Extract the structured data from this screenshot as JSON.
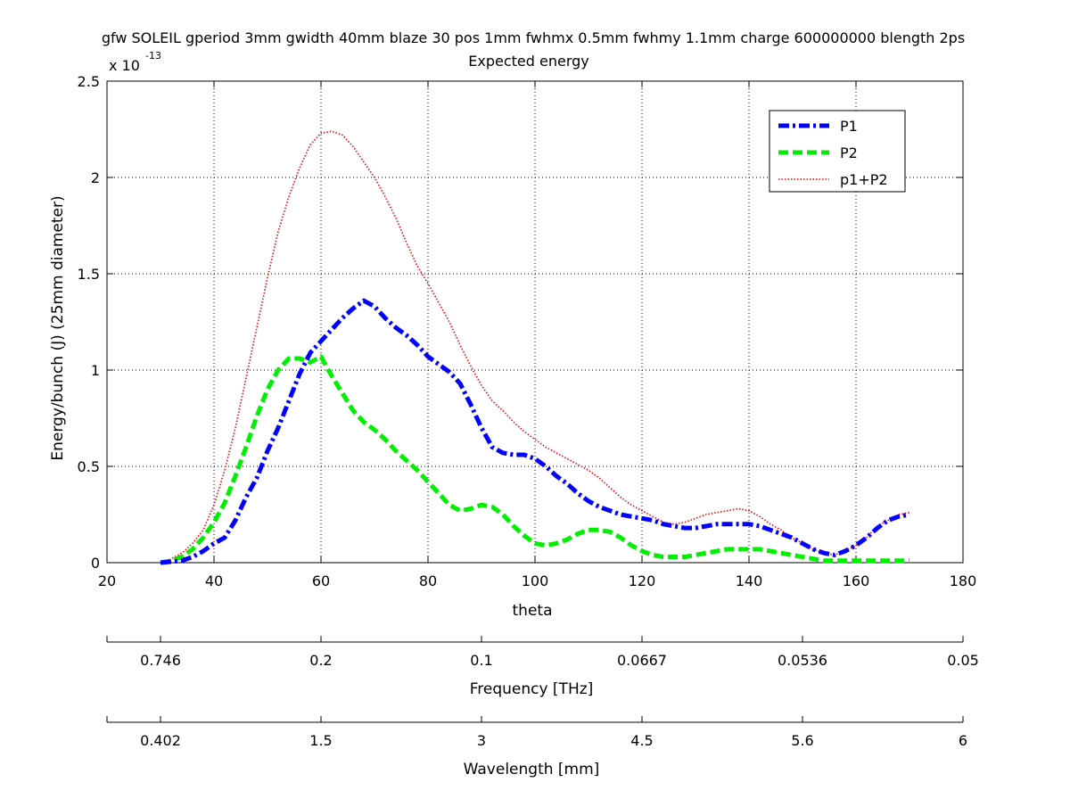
{
  "chart_data": {
    "type": "line",
    "title": "gfw SOLEIL gperiod 3mm gwidth 40mm blaze 30 pos 1mm fwhmx 0.5mm fwhmy 1.1mm charge 600000000 blength 2ps",
    "subtitle": "Expected energy",
    "xlabel": "theta",
    "ylabel": "Energy/bunch (J) (25mm diameter)",
    "y_exponent_label": "x 10",
    "y_exponent_power": "-13",
    "xlim": [
      20,
      180
    ],
    "ylim": [
      0,
      2.5
    ],
    "grid": true,
    "legend_position": "top-right",
    "x_ticks": [
      "20",
      "40",
      "60",
      "80",
      "100",
      "120",
      "140",
      "160",
      "180"
    ],
    "y_ticks": [
      "0",
      "0.5",
      "1",
      "1.5",
      "2",
      "2.5"
    ],
    "series": [
      {
        "name": "P1",
        "color": "#0000ff",
        "style": "dashdot",
        "x": [
          30,
          34,
          36,
          38,
          40,
          42,
          44,
          46,
          48,
          50,
          52,
          54,
          56,
          58,
          60,
          62,
          64,
          66,
          68,
          70,
          72,
          74,
          76,
          78,
          80,
          82,
          84,
          86,
          88,
          90,
          92,
          94,
          96,
          98,
          100,
          102,
          104,
          106,
          108,
          110,
          112,
          114,
          116,
          118,
          120,
          122,
          124,
          126,
          128,
          130,
          132,
          134,
          136,
          138,
          140,
          142,
          144,
          146,
          148,
          150,
          152,
          154,
          156,
          158,
          160,
          162,
          164,
          166,
          168,
          170
        ],
        "values": [
          0,
          0.01,
          0.03,
          0.06,
          0.1,
          0.13,
          0.22,
          0.34,
          0.44,
          0.58,
          0.7,
          0.84,
          0.98,
          1.09,
          1.15,
          1.21,
          1.27,
          1.32,
          1.36,
          1.33,
          1.27,
          1.22,
          1.18,
          1.13,
          1.07,
          1.03,
          0.99,
          0.93,
          0.82,
          0.7,
          0.6,
          0.57,
          0.56,
          0.56,
          0.54,
          0.5,
          0.45,
          0.41,
          0.36,
          0.32,
          0.29,
          0.27,
          0.25,
          0.24,
          0.23,
          0.22,
          0.2,
          0.19,
          0.18,
          0.18,
          0.19,
          0.2,
          0.2,
          0.2,
          0.2,
          0.19,
          0.17,
          0.15,
          0.13,
          0.1,
          0.07,
          0.05,
          0.04,
          0.06,
          0.09,
          0.13,
          0.18,
          0.22,
          0.24,
          0.25
        ]
      },
      {
        "name": "P2",
        "color": "#00ee00",
        "style": "dashed",
        "x": [
          30,
          32,
          34,
          36,
          38,
          40,
          42,
          44,
          46,
          48,
          50,
          52,
          54,
          56,
          58,
          60,
          62,
          64,
          66,
          68,
          70,
          72,
          74,
          76,
          78,
          80,
          82,
          84,
          86,
          88,
          90,
          92,
          94,
          96,
          98,
          100,
          102,
          104,
          106,
          108,
          110,
          112,
          114,
          116,
          118,
          120,
          122,
          124,
          126,
          128,
          130,
          132,
          134,
          136,
          138,
          140,
          142,
          144,
          146,
          148,
          150,
          152,
          154,
          156,
          158,
          160,
          162,
          164,
          166,
          168,
          170
        ],
        "values": [
          0,
          0.01,
          0.03,
          0.07,
          0.13,
          0.21,
          0.31,
          0.45,
          0.6,
          0.76,
          0.9,
          1.0,
          1.06,
          1.06,
          1.04,
          1.07,
          0.97,
          0.88,
          0.79,
          0.73,
          0.69,
          0.64,
          0.58,
          0.53,
          0.48,
          0.42,
          0.36,
          0.3,
          0.27,
          0.28,
          0.3,
          0.29,
          0.25,
          0.19,
          0.14,
          0.1,
          0.09,
          0.1,
          0.12,
          0.15,
          0.17,
          0.17,
          0.16,
          0.13,
          0.09,
          0.06,
          0.04,
          0.03,
          0.03,
          0.03,
          0.04,
          0.05,
          0.06,
          0.07,
          0.07,
          0.07,
          0.07,
          0.06,
          0.05,
          0.04,
          0.03,
          0.02,
          0.01,
          0.01,
          0.01,
          0.01,
          0.01,
          0.01,
          0.01,
          0.01,
          0.01
        ]
      },
      {
        "name": "p1+P2",
        "color": "#ff0000",
        "style": "dotted",
        "x": [
          30,
          32,
          34,
          36,
          38,
          40,
          42,
          44,
          46,
          48,
          50,
          52,
          54,
          56,
          58,
          60,
          62,
          64,
          66,
          68,
          70,
          72,
          74,
          76,
          78,
          80,
          82,
          84,
          86,
          88,
          90,
          92,
          94,
          96,
          98,
          100,
          102,
          104,
          106,
          108,
          110,
          112,
          114,
          116,
          118,
          120,
          122,
          124,
          126,
          128,
          130,
          132,
          134,
          136,
          138,
          140,
          142,
          144,
          146,
          148,
          150,
          152,
          154,
          156,
          158,
          160,
          162,
          164,
          166,
          168,
          170
        ],
        "values": [
          0,
          0.02,
          0.05,
          0.1,
          0.17,
          0.3,
          0.48,
          0.7,
          0.96,
          1.22,
          1.48,
          1.72,
          1.9,
          2.05,
          2.17,
          2.23,
          2.24,
          2.22,
          2.16,
          2.08,
          2.0,
          1.9,
          1.79,
          1.66,
          1.54,
          1.45,
          1.35,
          1.25,
          1.13,
          1.02,
          0.92,
          0.84,
          0.79,
          0.73,
          0.68,
          0.64,
          0.6,
          0.57,
          0.54,
          0.51,
          0.48,
          0.44,
          0.39,
          0.34,
          0.3,
          0.27,
          0.24,
          0.21,
          0.2,
          0.21,
          0.23,
          0.25,
          0.26,
          0.27,
          0.28,
          0.27,
          0.24,
          0.2,
          0.17,
          0.13,
          0.1,
          0.07,
          0.05,
          0.04,
          0.06,
          0.09,
          0.13,
          0.19,
          0.22,
          0.25,
          0.26
        ]
      }
    ],
    "frequency_axis": {
      "label": "Frequency [THz]",
      "ticks": [
        "0.746",
        "0.2",
        "0.1",
        "0.0667",
        "0.0536",
        "0.05"
      ]
    },
    "wavelength_axis": {
      "label": "Wavelength [mm]",
      "ticks": [
        "0.402",
        "1.5",
        "3",
        "4.5",
        "5.6",
        "6"
      ]
    }
  }
}
